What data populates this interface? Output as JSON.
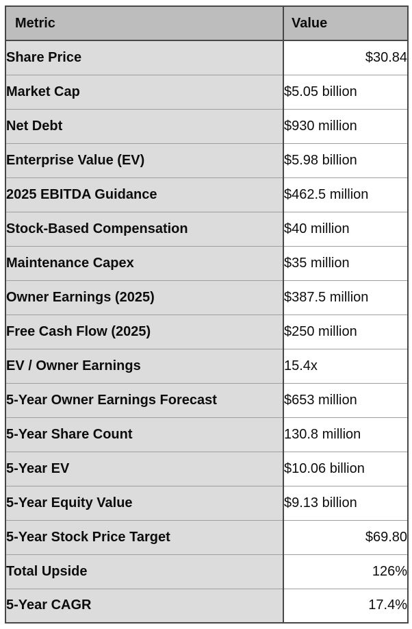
{
  "chart_data": {
    "type": "table",
    "columns": [
      "Metric",
      "Value"
    ],
    "rows": [
      [
        "Share Price",
        "$30.84"
      ],
      [
        "Market Cap",
        "$5.05 billion"
      ],
      [
        "Net Debt",
        "$930 million"
      ],
      [
        "Enterprise Value (EV)",
        "$5.98 billion"
      ],
      [
        "2025 EBITDA Guidance",
        "$462.5 million"
      ],
      [
        "Stock-Based Compensation",
        "$40 million"
      ],
      [
        "Maintenance Capex",
        "$35 million"
      ],
      [
        "Owner Earnings (2025)",
        "$387.5 million"
      ],
      [
        "Free Cash Flow (2025)",
        "$250 million"
      ],
      [
        "EV / Owner Earnings",
        "15.4x"
      ],
      [
        "5-Year Owner Earnings Forecast",
        "$653 million"
      ],
      [
        "5-Year Share Count",
        "130.8 million"
      ],
      [
        "5-Year EV",
        "$10.06 billion"
      ],
      [
        "5-Year Equity Value",
        "$9.13 billion"
      ],
      [
        "5-Year Stock Price Target",
        "$69.80"
      ],
      [
        "Total Upside",
        "126%"
      ],
      [
        "5-Year CAGR",
        "17.4%"
      ]
    ]
  },
  "table": {
    "header": {
      "metric": "Metric",
      "value": "Value"
    },
    "rows": [
      {
        "metric": "Share Price",
        "value": "$30.84",
        "align": "right"
      },
      {
        "metric": "Market Cap",
        "value": "$5.05 billion",
        "align": "left"
      },
      {
        "metric": "Net Debt",
        "value": "$930 million",
        "align": "left"
      },
      {
        "metric": "Enterprise Value (EV)",
        "value": "$5.98 billion",
        "align": "left"
      },
      {
        "metric": "2025 EBITDA Guidance",
        "value": "$462.5 million",
        "align": "left"
      },
      {
        "metric": "Stock-Based Compensation",
        "value": "$40 million",
        "align": "left"
      },
      {
        "metric": "Maintenance Capex",
        "value": "$35 million",
        "align": "left"
      },
      {
        "metric": "Owner Earnings (2025)",
        "value": "$387.5 million",
        "align": "left"
      },
      {
        "metric": "Free Cash Flow (2025)",
        "value": "$250 million",
        "align": "left"
      },
      {
        "metric": "EV / Owner Earnings",
        "value": "15.4x",
        "align": "left"
      },
      {
        "metric": "5-Year Owner Earnings Forecast",
        "value": "$653 million",
        "align": "left"
      },
      {
        "metric": "5-Year Share Count",
        "value": "130.8 million",
        "align": "left"
      },
      {
        "metric": "5-Year EV",
        "value": "$10.06 billion",
        "align": "left"
      },
      {
        "metric": "5-Year Equity Value",
        "value": "$9.13 billion",
        "align": "left"
      },
      {
        "metric": "5-Year Stock Price Target",
        "value": "$69.80",
        "align": "right"
      },
      {
        "metric": "Total Upside",
        "value": "126%",
        "align": "right"
      },
      {
        "metric": "5-Year CAGR",
        "value": "17.4%",
        "align": "right"
      }
    ]
  },
  "colors": {
    "header_background": "#bdbdbd",
    "metric_column_background": "#dcdcdc",
    "value_column_background": "#ffffff",
    "dark_border": "#474747",
    "row_separator": "#9f9f9f",
    "text": "#0c0c0c"
  }
}
